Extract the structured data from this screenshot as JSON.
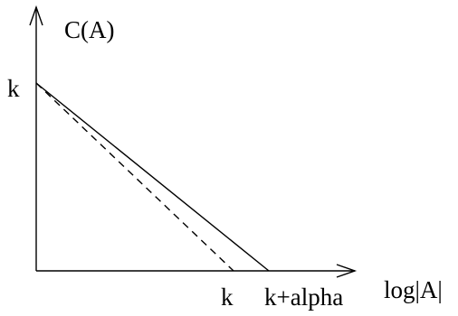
{
  "labels": {
    "y_axis": "C(A)",
    "x_axis": "log|A|",
    "y_intercept": "k",
    "x_tick_dashed": "k",
    "x_tick_solid": "k+alpha"
  },
  "style": {
    "stroke_color": "#000000",
    "background": "#ffffff"
  }
}
